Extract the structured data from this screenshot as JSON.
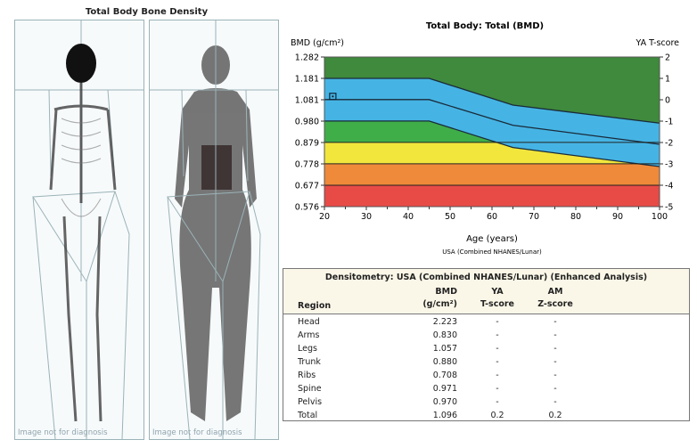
{
  "scan_panel": {
    "title": "Total Body Bone Density",
    "watermark": "Image not for diagnosis"
  },
  "chart_data": {
    "type": "line",
    "title": "Total Body: Total (BMD)",
    "ylabel": "BMD (g/cm²)",
    "y2label": "YA T-score",
    "xlabel": "Age (years)",
    "footnote": "USA (Combined NHANES/Lunar)",
    "xlim": [
      20,
      100
    ],
    "ylim": [
      0.576,
      1.282
    ],
    "xticks": [
      "20",
      "30",
      "40",
      "50",
      "60",
      "70",
      "80",
      "90",
      "100"
    ],
    "yticks": [
      "1.282",
      "1.181",
      "1.081",
      "0.980",
      "0.879",
      "0.778",
      "0.677",
      "0.576"
    ],
    "y2ticks": [
      "2",
      "1",
      "0",
      "-1",
      "-2",
      "-3",
      "-4",
      "-5"
    ],
    "reference_curves": [
      {
        "tscore": 1,
        "x": [
          20,
          45,
          65,
          100
        ],
        "y": [
          1.181,
          1.181,
          1.055,
          0.97
        ]
      },
      {
        "tscore": 0,
        "x": [
          20,
          45,
          65,
          100
        ],
        "y": [
          1.081,
          1.081,
          0.96,
          0.87
        ]
      },
      {
        "tscore": -1,
        "x": [
          20,
          45,
          65,
          100
        ],
        "y": [
          0.98,
          0.98,
          0.855,
          0.765
        ]
      }
    ],
    "horizontal_lines": [
      0.879,
      0.778,
      0.677
    ],
    "patient_point": {
      "age": 22,
      "bmd": 1.096
    },
    "colors": {
      "above": "#3f8a3c",
      "normal": "#45b4e4",
      "low": "#3fae49",
      "yellow": "#f2e63c",
      "orange": "#ef8a3a",
      "red": "#e84b46"
    }
  },
  "table": {
    "title": "Densitometry: USA (Combined NHANES/Lunar) (Enhanced Analysis)",
    "headers": {
      "region": "Region",
      "bmd1": "BMD",
      "bmd2": "(g/cm²)",
      "ya1": "YA",
      "ya2": "T-score",
      "am1": "AM",
      "am2": "Z-score"
    },
    "rows": [
      {
        "region": "Head",
        "bmd": "2.223",
        "t": "-",
        "z": "-"
      },
      {
        "region": "Arms",
        "bmd": "0.830",
        "t": "-",
        "z": "-"
      },
      {
        "region": "Legs",
        "bmd": "1.057",
        "t": "-",
        "z": "-"
      },
      {
        "region": "Trunk",
        "bmd": "0.880",
        "t": "-",
        "z": "-"
      },
      {
        "region": "Ribs",
        "bmd": "0.708",
        "t": "-",
        "z": "-"
      },
      {
        "region": "Spine",
        "bmd": "0.971",
        "t": "-",
        "z": "-"
      },
      {
        "region": "Pelvis",
        "bmd": "0.970",
        "t": "-",
        "z": "-"
      },
      {
        "region": "Total",
        "bmd": "1.096",
        "t": "0.2",
        "z": "0.2"
      }
    ]
  }
}
